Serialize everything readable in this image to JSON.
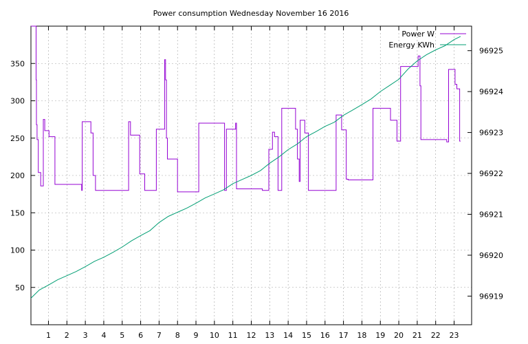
{
  "chart_data": {
    "type": "line",
    "title": "Power consumption Wednesday November 16 2016",
    "xlabel": "",
    "ylabel": "",
    "x_ticks": [
      1,
      2,
      3,
      4,
      5,
      6,
      7,
      8,
      9,
      10,
      11,
      12,
      13,
      14,
      15,
      16,
      17,
      18,
      19,
      20,
      21,
      22,
      23
    ],
    "xlim": [
      0.05,
      23.95
    ],
    "y_left_ticks": [
      50,
      100,
      150,
      200,
      250,
      300,
      350
    ],
    "ylim_left": [
      0,
      400
    ],
    "y_right_ticks": [
      96919,
      96920,
      96921,
      96922,
      96923,
      96924,
      96925
    ],
    "ylim_right": [
      96918.3,
      96925.6
    ],
    "grid": true,
    "legend_position": "top-right",
    "series": [
      {
        "name": "Power W",
        "axis": "left",
        "color": "#9400d3",
        "step": true,
        "x": [
          0.05,
          0.33,
          0.35,
          0.38,
          0.45,
          0.58,
          0.72,
          0.8,
          1.03,
          1.35,
          1.42,
          2.8,
          2.83,
          3.3,
          3.42,
          3.55,
          4.8,
          5.35,
          5.45,
          5.95,
          6.1,
          6.22,
          6.85,
          7.3,
          7.35,
          7.4,
          7.45,
          8,
          8.95,
          9.15,
          10.55,
          10.65,
          11.15,
          11.2,
          12.6,
          12.95,
          13.15,
          13.26,
          13.45,
          13.65,
          14.4,
          14.5,
          14.6,
          14.65,
          14.9,
          15.1,
          15.2,
          16.6,
          16.9,
          17.15,
          17.25,
          18.5,
          18.6,
          19.55,
          19.9,
          20.1,
          21.05,
          21.15,
          21.2,
          22.6,
          22.7,
          23.05,
          23.15,
          23.3,
          23.35
        ],
        "y": [
          400,
          328,
          268,
          248,
          204,
          186,
          275,
          260,
          252,
          188,
          188,
          180,
          272,
          257,
          200,
          180,
          180,
          272,
          254,
          202,
          202,
          180,
          262,
          355,
          328,
          250,
          222,
          178,
          178,
          270,
          180,
          262,
          270,
          182,
          180,
          235,
          258,
          252,
          180,
          290,
          262,
          222,
          192,
          274,
          257,
          180,
          180,
          281,
          261,
          195,
          194,
          194,
          290,
          274,
          246,
          346,
          360,
          320,
          248,
          245,
          342,
          322,
          316,
          246,
          246
        ]
      },
      {
        "name": "Energy KWh",
        "axis": "right",
        "color": "#009e73",
        "step": false,
        "x": [
          0.05,
          0.5,
          1,
          1.5,
          2,
          2.5,
          3,
          3.5,
          4,
          4.5,
          5,
          5.5,
          6,
          6.5,
          7,
          7.5,
          8,
          8.5,
          9,
          9.5,
          10,
          10.5,
          11,
          11.5,
          12,
          12.5,
          13,
          13.5,
          14,
          14.5,
          15,
          15.5,
          16,
          16.5,
          17,
          17.5,
          18,
          18.5,
          19,
          19.5,
          20,
          20.5,
          21,
          21.5,
          22,
          22.5,
          23,
          23.35
        ],
        "y": [
          96918.95,
          96919.15,
          96919.27,
          96919.4,
          96919.5,
          96919.6,
          96919.72,
          96919.85,
          96919.95,
          96920.07,
          96920.2,
          96920.35,
          96920.48,
          96920.6,
          96920.8,
          96920.95,
          96921.05,
          96921.15,
          96921.27,
          96921.4,
          96921.5,
          96921.6,
          96921.75,
          96921.85,
          96921.95,
          96922.07,
          96922.25,
          96922.4,
          96922.58,
          96922.72,
          96922.9,
          96923.02,
          96923.15,
          96923.25,
          96923.42,
          96923.55,
          96923.68,
          96923.82,
          96924.0,
          96924.15,
          96924.3,
          96924.55,
          96924.75,
          96924.9,
          96925.02,
          96925.12,
          96925.27,
          96925.35
        ]
      }
    ]
  }
}
